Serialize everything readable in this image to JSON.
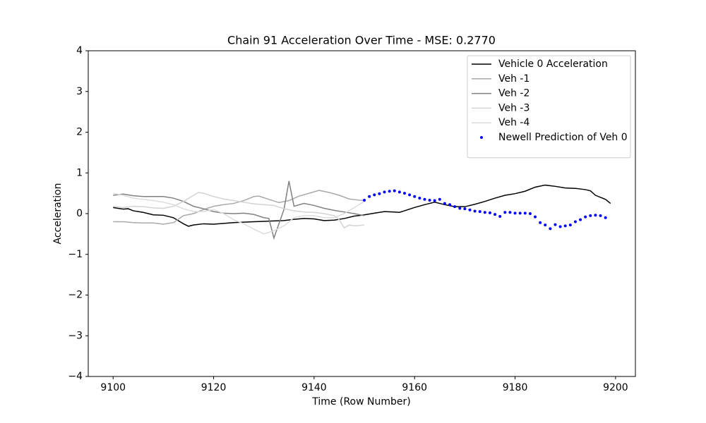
{
  "chart_data": {
    "type": "line",
    "title": "Chain 91 Acceleration Over Time - MSE: 0.2770",
    "x_label": "Time (Row Number)",
    "y_label": "Acceleration",
    "xlim": [
      9095.05,
      9203.95
    ],
    "ylim": [
      -4,
      4
    ],
    "xticks": [
      9100,
      9120,
      9140,
      9160,
      9180,
      9200
    ],
    "yticks": [
      {
        "value": -4,
        "label": "−4"
      },
      {
        "value": -3,
        "label": "−3"
      },
      {
        "value": -2,
        "label": "−2"
      },
      {
        "value": -1,
        "label": "−1"
      },
      0,
      1,
      2,
      3,
      4
    ],
    "legend": "upper right",
    "series": [
      {
        "name": "Vehicle 0 Acceleration",
        "color": "#000000",
        "marker": "line",
        "x": [
          9100,
          9102,
          9103,
          9104,
          9106,
          9108,
          9110,
          9112,
          9114,
          9115,
          9116,
          9118,
          9120,
          9122,
          9124,
          9126,
          9128,
          9130,
          9132,
          9134,
          9136,
          9138,
          9140,
          9142,
          9144,
          9146,
          9148,
          9150,
          9152,
          9154,
          9156,
          9157,
          9158,
          9160,
          9162,
          9164,
          9166,
          9168,
          9170,
          9172,
          9174,
          9176,
          9178,
          9180,
          9182,
          9184,
          9186,
          9188,
          9190,
          9192,
          9194,
          9195,
          9196,
          9198,
          9199
        ],
        "values": [
          0.15,
          0.11,
          0.12,
          0.07,
          0.03,
          -0.03,
          -0.04,
          -0.1,
          -0.25,
          -0.31,
          -0.28,
          -0.25,
          -0.26,
          -0.24,
          -0.22,
          -0.21,
          -0.2,
          -0.19,
          -0.18,
          -0.17,
          -0.14,
          -0.12,
          -0.13,
          -0.17,
          -0.16,
          -0.12,
          -0.06,
          -0.03,
          0.01,
          0.05,
          0.04,
          0.03,
          0.07,
          0.15,
          0.22,
          0.28,
          0.22,
          0.17,
          0.17,
          0.23,
          0.3,
          0.38,
          0.45,
          0.49,
          0.55,
          0.65,
          0.7,
          0.67,
          0.63,
          0.62,
          0.59,
          0.56,
          0.45,
          0.35,
          0.25
        ]
      },
      {
        "name": "Veh -1",
        "color": "#a9a9a9",
        "marker": "line",
        "x": [
          9100,
          9102,
          9104,
          9106,
          9108,
          9110,
          9112,
          9114,
          9116,
          9118,
          9120,
          9122,
          9124,
          9126,
          9128,
          9129,
          9131,
          9133,
          9135,
          9137,
          9139,
          9141,
          9143,
          9145,
          9147,
          9149,
          9150
        ],
        "values": [
          -0.2,
          -0.2,
          -0.22,
          -0.23,
          -0.23,
          -0.26,
          -0.22,
          -0.05,
          0.0,
          0.1,
          0.18,
          0.22,
          0.25,
          0.32,
          0.42,
          0.43,
          0.35,
          0.27,
          0.32,
          0.43,
          0.5,
          0.57,
          0.52,
          0.45,
          0.36,
          0.33,
          0.32
        ]
      },
      {
        "name": "Veh -2",
        "color": "#808080",
        "marker": "line",
        "x": [
          9100,
          9102,
          9104,
          9106,
          9108,
          9110,
          9112,
          9114,
          9116,
          9118,
          9120,
          9122,
          9124,
          9126,
          9128,
          9130,
          9131,
          9132,
          9134,
          9135,
          9136,
          9138,
          9140,
          9142,
          9144,
          9146,
          9148,
          9150
        ],
        "values": [
          0.45,
          0.48,
          0.44,
          0.42,
          0.42,
          0.42,
          0.38,
          0.3,
          0.18,
          0.12,
          0.05,
          0.01,
          0.0,
          0.01,
          -0.02,
          -0.1,
          -0.12,
          -0.6,
          0.1,
          0.8,
          0.18,
          0.25,
          0.2,
          0.13,
          0.08,
          0.04,
          0.0,
          -0.05
        ]
      },
      {
        "name": "Veh -3",
        "color": "#d3d3d3",
        "marker": "line",
        "x": [
          9100,
          9102,
          9104,
          9106,
          9108,
          9110,
          9112,
          9114,
          9116,
          9117,
          9118,
          9120,
          9122,
          9124,
          9126,
          9128,
          9130,
          9132,
          9134,
          9136,
          9138,
          9140,
          9142,
          9144,
          9145,
          9146,
          9147,
          9148,
          9150
        ],
        "values": [
          0.18,
          0.15,
          0.18,
          0.17,
          0.14,
          0.13,
          0.18,
          0.3,
          0.45,
          0.52,
          0.5,
          0.42,
          0.36,
          0.32,
          0.28,
          0.24,
          0.22,
          0.2,
          0.12,
          0.07,
          0.04,
          0.03,
          0.0,
          -0.05,
          -0.15,
          -0.35,
          -0.28,
          -0.3,
          -0.28
        ]
      },
      {
        "name": "Veh -4",
        "color": "#dcdcdc",
        "marker": "line",
        "x": [
          9100,
          9102,
          9104,
          9106,
          9108,
          9110,
          9112,
          9114,
          9116,
          9118,
          9120,
          9122,
          9124,
          9126,
          9128,
          9130,
          9132,
          9134,
          9136,
          9138,
          9140,
          9142,
          9144,
          9146,
          9148,
          9150
        ],
        "values": [
          0.5,
          0.45,
          0.38,
          0.35,
          0.32,
          0.28,
          0.22,
          0.12,
          0.05,
          0.05,
          0.1,
          0.0,
          -0.15,
          -0.25,
          -0.38,
          -0.5,
          -0.42,
          -0.3,
          -0.1,
          -0.05,
          -0.05,
          -0.1,
          -0.1,
          0.0,
          0.15,
          0.3
        ]
      },
      {
        "name": "Newell Prediction of Veh 0",
        "color": "#0000ff",
        "marker": "dot",
        "x": [
          9150,
          9151,
          9152,
          9153,
          9154,
          9155,
          9156,
          9157,
          9158,
          9159,
          9160,
          9161,
          9162,
          9163,
          9164,
          9165,
          9166,
          9167,
          9168,
          9169,
          9170,
          9171,
          9172,
          9173,
          9174,
          9175,
          9176,
          9177,
          9178,
          9179,
          9180,
          9181,
          9182,
          9183,
          9184,
          9185,
          9186,
          9187,
          9188,
          9189,
          9190,
          9191,
          9192,
          9193,
          9194,
          9195,
          9196,
          9197,
          9198
        ],
        "values": [
          0.33,
          0.42,
          0.46,
          0.49,
          0.53,
          0.55,
          0.56,
          0.53,
          0.5,
          0.46,
          0.42,
          0.38,
          0.35,
          0.33,
          0.32,
          0.35,
          0.25,
          0.22,
          0.17,
          0.13,
          0.12,
          0.09,
          0.06,
          0.05,
          0.03,
          0.02,
          -0.02,
          -0.07,
          0.03,
          0.03,
          0.01,
          0.01,
          0.01,
          0.0,
          -0.08,
          -0.22,
          -0.28,
          -0.37,
          -0.27,
          -0.32,
          -0.3,
          -0.28,
          -0.2,
          -0.15,
          -0.08,
          -0.05,
          -0.04,
          -0.05,
          -0.1
        ]
      }
    ]
  }
}
